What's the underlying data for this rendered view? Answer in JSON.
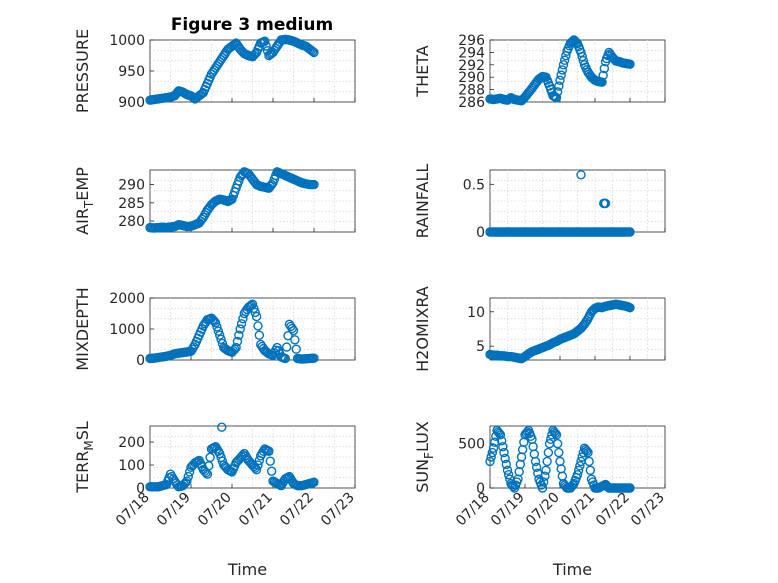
{
  "figure": {
    "title": "Figure 3 medium"
  },
  "colors": {
    "marker": "#0072BD",
    "axis": "#262626",
    "grid": "#d9d9d9"
  },
  "chart_data": [
    {
      "type": "scatter",
      "id": "pressure",
      "ylabel_main": "PRESSURE",
      "ylabel_sub": "",
      "ylabel_tail": "",
      "ylim": [
        900,
        1000
      ],
      "yticks": [
        900,
        950,
        1000
      ],
      "xlim": [
        0,
        5
      ],
      "xtick_labels": [],
      "xlabel": "",
      "grid": true,
      "series": [
        {
          "x": [
            0,
            0.1,
            0.2,
            0.3,
            0.4,
            0.5,
            0.6,
            0.7,
            0.8,
            0.9,
            1.0,
            1.1,
            1.2,
            1.3,
            1.4,
            1.5,
            1.6,
            1.7,
            1.8,
            1.9,
            2.0,
            2.1,
            2.2,
            2.3,
            2.4,
            2.5,
            2.6,
            2.7,
            2.8,
            2.9,
            3.0,
            3.1,
            3.2,
            3.3,
            3.4,
            3.5,
            3.6,
            3.7,
            3.8,
            3.9,
            4.0
          ],
          "y": [
            903,
            904,
            905,
            906,
            907,
            908,
            910,
            918,
            916,
            912,
            910,
            905,
            910,
            915,
            930,
            945,
            955,
            965,
            975,
            985,
            990,
            995,
            985,
            978,
            975,
            973,
            980,
            995,
            998,
            975,
            980,
            990,
            1000,
            1001,
            1000,
            998,
            995,
            992,
            990,
            985,
            980
          ]
        }
      ]
    },
    {
      "type": "scatter",
      "id": "theta",
      "ylabel_main": "THETA",
      "ylabel_sub": "",
      "ylabel_tail": "",
      "ylim": [
        286,
        296
      ],
      "yticks": [
        286,
        288,
        290,
        292,
        294,
        296
      ],
      "xlim": [
        0,
        5
      ],
      "xtick_labels": [],
      "xlabel": "",
      "grid": true,
      "series": [
        {
          "x": [
            0,
            0.1,
            0.2,
            0.3,
            0.4,
            0.5,
            0.6,
            0.7,
            0.8,
            0.9,
            1.0,
            1.1,
            1.2,
            1.3,
            1.4,
            1.5,
            1.6,
            1.7,
            1.8,
            1.9,
            2.0,
            2.1,
            2.2,
            2.3,
            2.4,
            2.5,
            2.6,
            2.7,
            2.8,
            2.9,
            3.0,
            3.1,
            3.2,
            3.3,
            3.4,
            3.5,
            3.6,
            3.7,
            3.8,
            3.9,
            4.0
          ],
          "y": [
            286.5,
            286.4,
            286.5,
            286.6,
            286.4,
            286.3,
            286.7,
            286.4,
            286.3,
            286.2,
            286.8,
            287.5,
            288.2,
            289.0,
            289.7,
            290.1,
            290.0,
            288.6,
            287.0,
            286.7,
            289.5,
            292.0,
            294.2,
            295.5,
            296.0,
            295.4,
            294.0,
            292.0,
            290.8,
            290.0,
            289.5,
            289.3,
            289.2,
            292.5,
            294.0,
            293.2,
            292.6,
            292.5,
            292.3,
            292.2,
            292.1
          ]
        }
      ]
    },
    {
      "type": "scatter",
      "id": "air-temp",
      "ylabel_main": "AIR",
      "ylabel_sub": "T",
      "ylabel_tail": "EMP",
      "ylim": [
        277,
        294
      ],
      "yticks": [
        280,
        285,
        290
      ],
      "xlim": [
        0,
        5
      ],
      "xtick_labels": [],
      "xlabel": "",
      "grid": true,
      "series": [
        {
          "x": [
            0,
            0.1,
            0.2,
            0.3,
            0.4,
            0.5,
            0.6,
            0.7,
            0.8,
            0.9,
            1.0,
            1.1,
            1.2,
            1.3,
            1.4,
            1.5,
            1.6,
            1.7,
            1.8,
            1.9,
            2.0,
            2.1,
            2.2,
            2.3,
            2.4,
            2.5,
            2.6,
            2.7,
            2.8,
            2.9,
            3.0,
            3.1,
            3.2,
            3.3,
            3.4,
            3.5,
            3.6,
            3.7,
            3.8,
            3.9,
            4.0
          ],
          "y": [
            278.2,
            278.1,
            278.2,
            278.3,
            278.2,
            278.4,
            278.5,
            279.0,
            278.8,
            278.5,
            278.6,
            279.0,
            279.5,
            281.0,
            283.0,
            284.5,
            285.5,
            286.0,
            285.8,
            285.4,
            286.0,
            289.0,
            292.0,
            293.5,
            293.0,
            291.5,
            290.0,
            289.5,
            289.3,
            289.0,
            290.5,
            293.5,
            293.0,
            292.5,
            292.0,
            291.5,
            291.0,
            290.5,
            290.2,
            290.0,
            290.0
          ]
        }
      ]
    },
    {
      "type": "scatter",
      "id": "rainfall",
      "ylabel_main": "RAINFALL",
      "ylabel_sub": "",
      "ylabel_tail": "",
      "ylim": [
        0,
        0.65
      ],
      "yticks": [
        0,
        0.5
      ],
      "xlim": [
        0,
        5
      ],
      "xtick_labels": [],
      "xlabel": "",
      "grid": true,
      "series": [
        {
          "x": [
            0,
            0.1,
            0.2,
            0.3,
            0.4,
            0.5,
            0.6,
            0.7,
            0.8,
            0.9,
            1.0,
            1.1,
            1.2,
            1.3,
            1.4,
            1.5,
            1.6,
            1.7,
            1.8,
            1.9,
            2.0,
            2.1,
            2.2,
            2.3,
            2.4,
            2.5,
            2.6,
            2.7,
            2.8,
            2.9,
            3.0,
            3.1,
            3.2,
            3.3,
            3.4,
            3.5,
            3.6,
            3.7,
            3.8,
            3.9,
            4.0,
            2.6,
            3.25,
            3.3
          ],
          "y": [
            0,
            0,
            0,
            0,
            0,
            0,
            0,
            0,
            0,
            0,
            0,
            0,
            0,
            0,
            0,
            0,
            0,
            0,
            0,
            0,
            0,
            0,
            0,
            0,
            0,
            0,
            0,
            0,
            0,
            0,
            0,
            0,
            0,
            0,
            0,
            0,
            0,
            0,
            0,
            0,
            0,
            0.6,
            0.3,
            0.3
          ]
        }
      ]
    },
    {
      "type": "scatter",
      "id": "mixdepth",
      "ylabel_main": "MIXDEPTH",
      "ylabel_sub": "",
      "ylabel_tail": "",
      "ylim": [
        0,
        2000
      ],
      "yticks": [
        0,
        1000,
        2000
      ],
      "xlim": [
        0,
        5
      ],
      "xtick_labels": [],
      "xlabel": "",
      "grid": true,
      "series": [
        {
          "x": [
            0,
            0.1,
            0.2,
            0.3,
            0.4,
            0.5,
            0.6,
            0.7,
            0.8,
            0.9,
            1.0,
            1.1,
            1.2,
            1.3,
            1.4,
            1.5,
            1.6,
            1.7,
            1.8,
            1.9,
            2.0,
            2.1,
            2.2,
            2.3,
            2.4,
            2.5,
            2.6,
            2.7,
            2.8,
            2.9,
            3.0,
            3.1,
            3.2,
            3.3,
            3.4,
            3.5,
            3.6,
            3.7,
            3.8,
            3.9,
            4.0
          ],
          "y": [
            50,
            60,
            80,
            100,
            120,
            150,
            200,
            220,
            240,
            260,
            280,
            500,
            800,
            1100,
            1300,
            1350,
            1200,
            800,
            400,
            300,
            250,
            400,
            1000,
            1500,
            1700,
            1800,
            1400,
            500,
            300,
            200,
            150,
            400,
            100,
            50,
            1150,
            950,
            50,
            30,
            40,
            50,
            60
          ]
        }
      ]
    },
    {
      "type": "scatter",
      "id": "h2omixra",
      "ylabel_main": "H2OMIXRA",
      "ylabel_sub": "",
      "ylabel_tail": "",
      "ylim": [
        3,
        12
      ],
      "yticks": [
        5,
        10
      ],
      "xlim": [
        0,
        5
      ],
      "xtick_labels": [],
      "xlabel": "",
      "grid": true,
      "series": [
        {
          "x": [
            0,
            0.1,
            0.2,
            0.3,
            0.4,
            0.5,
            0.6,
            0.7,
            0.8,
            0.9,
            1.0,
            1.1,
            1.2,
            1.3,
            1.4,
            1.5,
            1.6,
            1.7,
            1.8,
            1.9,
            2.0,
            2.1,
            2.2,
            2.3,
            2.4,
            2.5,
            2.6,
            2.7,
            2.8,
            2.9,
            3.0,
            3.1,
            3.2,
            3.3,
            3.4,
            3.5,
            3.6,
            3.7,
            3.8,
            3.9,
            4.0
          ],
          "y": [
            3.8,
            3.7,
            3.7,
            3.6,
            3.6,
            3.5,
            3.5,
            3.4,
            3.3,
            3.2,
            3.5,
            3.9,
            4.2,
            4.4,
            4.6,
            4.8,
            5.0,
            5.2,
            5.5,
            5.7,
            6.0,
            6.2,
            6.4,
            6.6,
            6.8,
            7.2,
            7.6,
            8.2,
            9.0,
            10.0,
            10.5,
            10.7,
            10.6,
            10.8,
            10.9,
            11.0,
            11.1,
            11.0,
            10.9,
            10.8,
            10.6
          ]
        }
      ]
    },
    {
      "type": "scatter",
      "id": "terr-msl",
      "ylabel_main": "TERR",
      "ylabel_sub": "M",
      "ylabel_tail": "SL",
      "ylim": [
        0,
        270
      ],
      "yticks": [
        0,
        100,
        200
      ],
      "xlim": [
        0,
        5
      ],
      "xtick_labels": [
        "07/18",
        "07/19",
        "07/20",
        "07/21",
        "07/22",
        "07/23"
      ],
      "xlabel": "Time",
      "grid": true,
      "series": [
        {
          "x": [
            0,
            0.1,
            0.2,
            0.3,
            0.4,
            0.5,
            0.6,
            0.7,
            0.8,
            0.9,
            1.0,
            1.1,
            1.2,
            1.3,
            1.4,
            1.5,
            1.6,
            1.7,
            1.8,
            1.9,
            2.0,
            2.1,
            2.2,
            2.3,
            2.4,
            2.5,
            2.6,
            2.7,
            2.8,
            2.9,
            3.0,
            3.1,
            3.2,
            3.3,
            3.4,
            3.5,
            3.6,
            3.7,
            3.8,
            3.9,
            4.0,
            1.75
          ],
          "y": [
            5,
            5,
            5,
            10,
            15,
            60,
            30,
            5,
            10,
            30,
            90,
            110,
            120,
            80,
            60,
            170,
            180,
            150,
            100,
            80,
            70,
            110,
            130,
            150,
            120,
            100,
            80,
            140,
            170,
            160,
            30,
            20,
            10,
            40,
            50,
            20,
            10,
            10,
            15,
            20,
            25,
            265
          ]
        }
      ]
    },
    {
      "type": "scatter",
      "id": "sun-flux",
      "ylabel_main": "SUN",
      "ylabel_sub": "F",
      "ylabel_tail": "LUX",
      "ylim": [
        0,
        700
      ],
      "yticks": [
        0,
        500
      ],
      "xlim": [
        0,
        5
      ],
      "xtick_labels": [
        "07/18",
        "07/19",
        "07/20",
        "07/21",
        "07/22",
        "07/23"
      ],
      "xlabel": "Time",
      "grid": true,
      "series": [
        {
          "x": [
            0,
            0.1,
            0.2,
            0.3,
            0.4,
            0.5,
            0.6,
            0.7,
            0.8,
            0.9,
            1.0,
            1.1,
            1.2,
            1.3,
            1.4,
            1.5,
            1.6,
            1.7,
            1.8,
            1.9,
            2.0,
            2.1,
            2.2,
            2.3,
            2.4,
            2.5,
            2.6,
            2.7,
            2.8,
            2.9,
            3.0,
            3.1,
            3.2,
            3.3,
            3.4,
            3.5,
            3.6,
            3.7,
            3.8,
            3.9,
            4.0
          ],
          "y": [
            300,
            450,
            650,
            600,
            400,
            200,
            50,
            0,
            100,
            350,
            600,
            650,
            550,
            300,
            100,
            0,
            200,
            500,
            650,
            600,
            300,
            50,
            0,
            0,
            50,
            150,
            300,
            450,
            400,
            100,
            0,
            0,
            20,
            40,
            0,
            0,
            0,
            0,
            0,
            0,
            0
          ]
        }
      ]
    }
  ]
}
